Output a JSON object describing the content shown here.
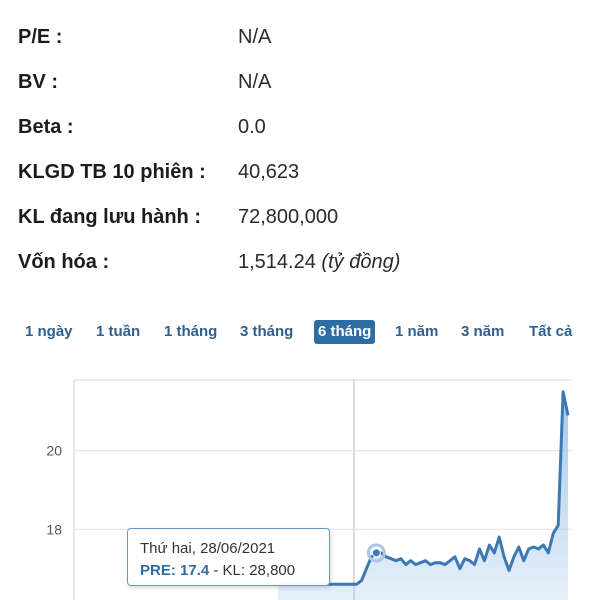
{
  "stats": [
    {
      "label": "P/E :",
      "value": "N/A"
    },
    {
      "label": "BV :",
      "value": "N/A"
    },
    {
      "label": "Beta :",
      "value": "0.0"
    },
    {
      "label": "KLGD TB 10 phiên :",
      "value": "40,623"
    },
    {
      "label": "KL đang lưu hành :",
      "value": "72,800,000"
    },
    {
      "label": "Vốn hóa :",
      "value": "1,514.24",
      "unit": "(tỷ đồng)"
    }
  ],
  "periods": [
    {
      "label": "1 ngày"
    },
    {
      "label": "1 tuần"
    },
    {
      "label": "1 tháng"
    },
    {
      "label": "3 tháng"
    },
    {
      "label": "6 tháng",
      "active": true
    },
    {
      "label": "1 năm"
    },
    {
      "label": "3 năm"
    },
    {
      "label": "Tất cả"
    }
  ],
  "chart_data": {
    "type": "area",
    "y_ticks": [
      "20",
      "18"
    ],
    "ylim": [
      16.2,
      21.8
    ],
    "x": [
      0,
      1,
      2,
      3,
      4,
      5,
      6,
      7,
      8,
      9,
      10,
      11,
      12,
      13,
      14,
      15,
      16,
      17,
      18,
      19,
      20,
      21,
      22,
      23,
      24,
      25,
      26,
      27,
      28,
      29,
      30,
      31,
      32,
      33,
      34,
      35,
      36,
      37,
      38,
      39,
      40,
      41,
      42,
      43,
      44,
      45,
      46,
      47,
      48,
      49,
      50,
      51,
      52,
      53,
      54,
      55,
      56,
      57,
      58,
      59
    ],
    "values": [
      16.6,
      16.6,
      16.6,
      16.6,
      16.6,
      16.6,
      16.6,
      16.6,
      16.6,
      16.6,
      16.6,
      16.6,
      16.6,
      16.6,
      16.6,
      16.6,
      16.6,
      16.7,
      17.0,
      17.3,
      17.4,
      17.4,
      17.3,
      17.25,
      17.2,
      17.25,
      17.1,
      17.2,
      17.1,
      17.15,
      17.2,
      17.1,
      17.15,
      17.15,
      17.1,
      17.2,
      17.3,
      17.0,
      17.25,
      17.2,
      17.1,
      17.5,
      17.2,
      17.6,
      17.4,
      17.8,
      17.3,
      16.95,
      17.3,
      17.55,
      17.2,
      17.5,
      17.55,
      17.5,
      17.6,
      17.4,
      17.9,
      18.1,
      21.5,
      20.9
    ],
    "color": "#3b78b4",
    "fill": "#9cc3ea"
  },
  "tooltip": {
    "date": "Thứ hai, 28/06/2021",
    "pre_label": "PRE: 17.4",
    "sep": " - KL: ",
    "volume": "28,800"
  }
}
